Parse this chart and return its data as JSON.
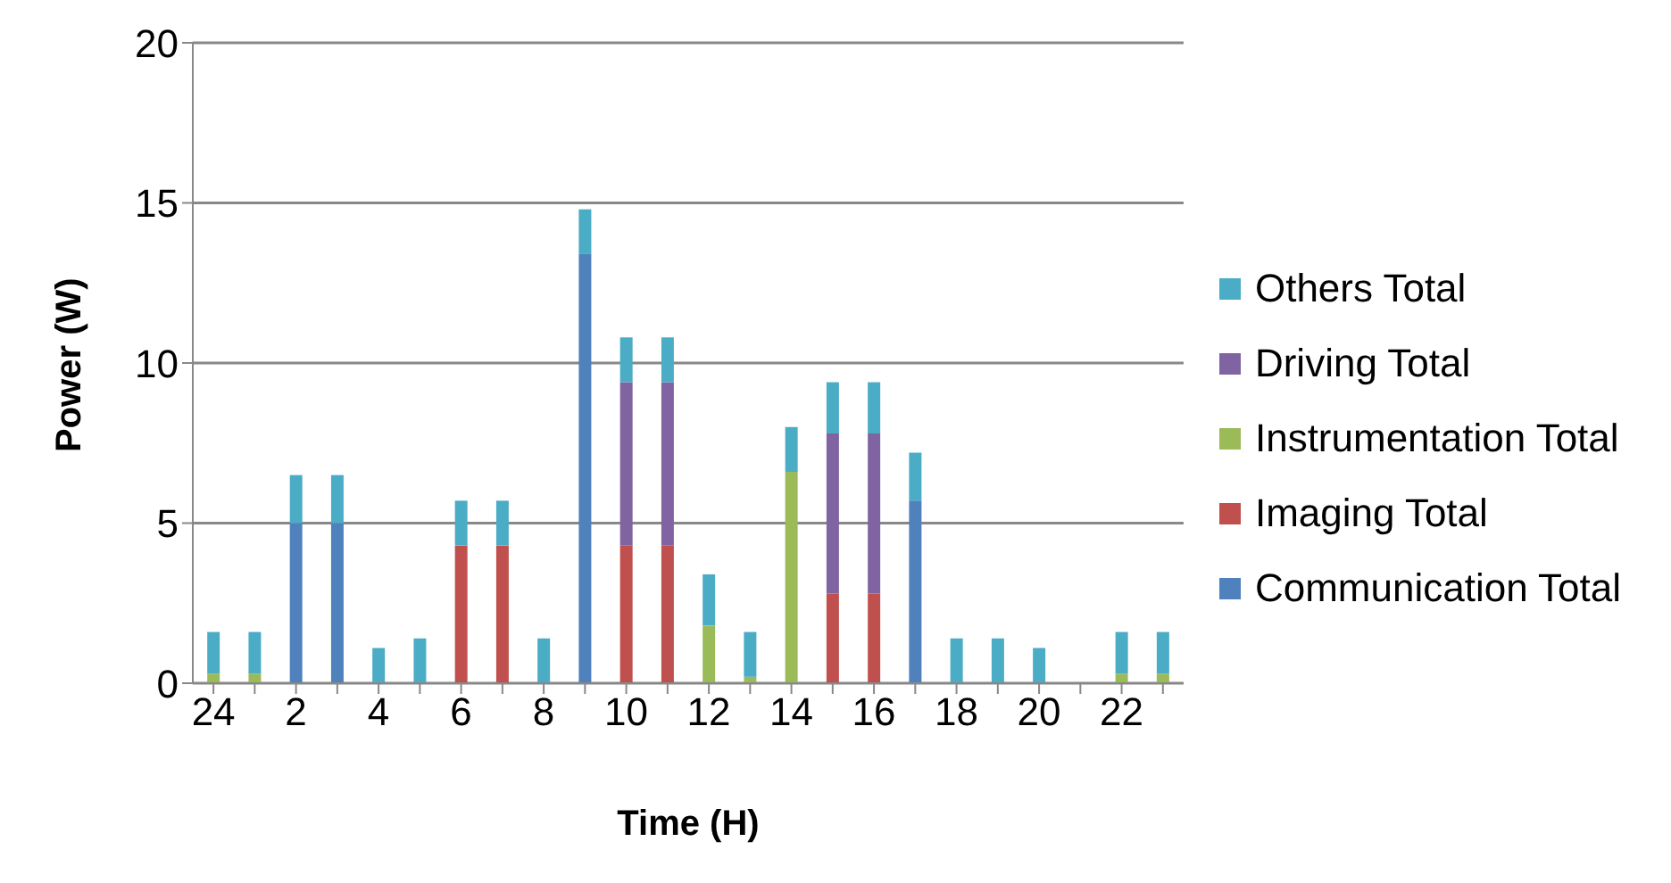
{
  "chart_data": {
    "type": "bar",
    "stacked": true,
    "xlabel": "Time (H)",
    "ylabel": "Power (W)",
    "categories": [
      "24",
      null,
      "2",
      null,
      "4",
      null,
      "6",
      null,
      "8",
      null,
      "10",
      null,
      "12",
      null,
      "14",
      null,
      "16",
      null,
      "18",
      null,
      "20",
      null,
      "22",
      null
    ],
    "series": [
      {
        "name": "Communication Total",
        "color": "#4f81bd",
        "values": [
          0,
          0,
          5.0,
          5.0,
          0,
          0,
          0,
          0,
          0,
          13.4,
          0,
          0,
          0,
          0,
          0,
          0,
          0,
          5.7,
          0,
          0,
          0,
          0,
          0,
          0
        ]
      },
      {
        "name": "Imaging Total",
        "color": "#c0504d",
        "values": [
          0,
          0,
          0,
          0,
          0,
          0,
          4.3,
          4.3,
          0,
          0,
          4.3,
          4.3,
          0,
          0,
          0,
          2.8,
          2.8,
          0,
          0,
          0,
          0,
          0,
          0,
          0
        ]
      },
      {
        "name": "Instrumentation Total",
        "color": "#9bbb59",
        "values": [
          0.3,
          0.3,
          0,
          0,
          0,
          0,
          0,
          0,
          0,
          0,
          0,
          0,
          1.8,
          0.2,
          6.6,
          0,
          0,
          0,
          0,
          0,
          0,
          0,
          0.3,
          0.3
        ]
      },
      {
        "name": "Driving Total",
        "color": "#8064a2",
        "values": [
          0,
          0,
          0,
          0,
          0,
          0,
          0,
          0,
          0,
          0,
          5.1,
          5.1,
          0,
          0,
          0,
          5.0,
          5.0,
          0,
          0,
          0,
          0,
          0,
          0,
          0
        ]
      },
      {
        "name": "Others Total",
        "color": "#4bacc6",
        "values": [
          1.3,
          1.3,
          1.5,
          1.5,
          1.1,
          1.4,
          1.4,
          1.4,
          1.4,
          1.4,
          1.4,
          1.4,
          1.6,
          1.4,
          1.4,
          1.6,
          1.6,
          1.5,
          1.4,
          1.4,
          1.1,
          0,
          1.3,
          1.3
        ]
      }
    ],
    "ylim": [
      0,
      20
    ],
    "yticks": [
      0,
      5,
      10,
      15,
      20
    ],
    "grid": "y",
    "legend": "right"
  }
}
